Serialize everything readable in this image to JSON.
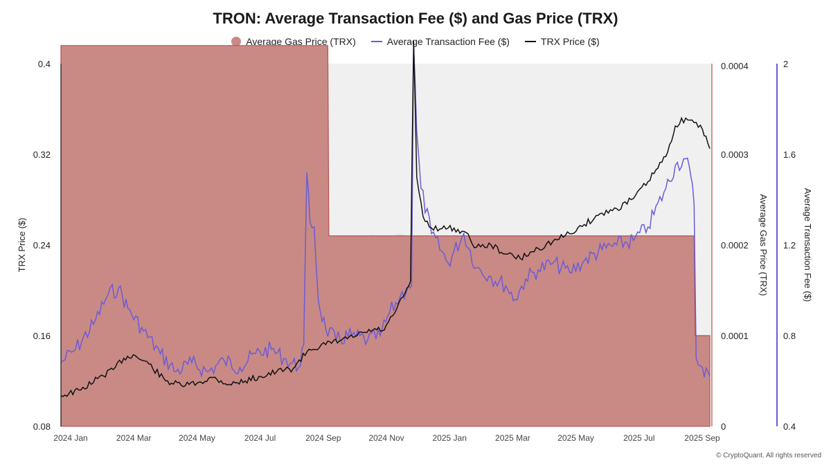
{
  "chart_data": {
    "type": "area",
    "title": "TRON: Average Transaction Fee ($) and Gas Price (TRX)",
    "legend_placement": "top-center",
    "watermark": "CryptoQuant",
    "copyright": "© CryptoQuant. All rights reserved",
    "x_ticks": [
      "2024 Jan",
      "2024 Mar",
      "2024 May",
      "2024 Jul",
      "2024 Sep",
      "2024 Nov",
      "2025 Jan",
      "2025 Mar",
      "2025 May",
      "2025 Jul",
      "2025 Sep"
    ],
    "colors": {
      "gas": "#c98a86",
      "gas_stroke": "#b5524c",
      "fee": "#6b5bd6",
      "price": "#111111",
      "plot_bg": "#f0f0f0"
    },
    "axes": {
      "left": {
        "label": "TRX Price ($)",
        "range": [
          0.08,
          0.4
        ],
        "ticks": [
          "0.08",
          "0.16",
          "0.24",
          "0.32",
          "0.4"
        ]
      },
      "right_gas": {
        "label": "Average Gas Price (TRX)",
        "range": [
          0,
          0.0004
        ],
        "ticks": [
          "0",
          "0.0001",
          "0.0002",
          "0.0003",
          "0.0004"
        ]
      },
      "right_fee": {
        "label": "Average Transaction Fee ($)",
        "range": [
          0.4,
          2.0
        ],
        "ticks": [
          "0.4",
          "0.8",
          "1.2",
          "1.6",
          "2"
        ]
      }
    },
    "series": [
      {
        "name": "Average Gas Price (TRX)",
        "kind": "area-step",
        "points": [
          [
            "2024-01-01",
            0.00042
          ],
          [
            "2024-09-12",
            0.00042
          ],
          [
            "2024-09-13",
            0.00021
          ],
          [
            "2025-08-28",
            0.00021
          ],
          [
            "2025-08-29",
            0.0001
          ],
          [
            "2025-09-12",
            0.0001
          ]
        ]
      },
      {
        "name": "Average Transaction Fee ($)",
        "kind": "line",
        "points": [
          [
            "2024-01-01",
            0.68
          ],
          [
            "2024-01-15",
            0.74
          ],
          [
            "2024-02-01",
            0.85
          ],
          [
            "2024-02-15",
            0.98
          ],
          [
            "2024-02-25",
            1.01
          ],
          [
            "2024-03-05",
            0.92
          ],
          [
            "2024-03-20",
            0.82
          ],
          [
            "2024-04-05",
            0.72
          ],
          [
            "2024-04-20",
            0.64
          ],
          [
            "2024-05-05",
            0.68
          ],
          [
            "2024-05-20",
            0.64
          ],
          [
            "2024-06-05",
            0.69
          ],
          [
            "2024-06-20",
            0.66
          ],
          [
            "2024-07-05",
            0.72
          ],
          [
            "2024-07-20",
            0.74
          ],
          [
            "2024-08-01",
            0.7
          ],
          [
            "2024-08-15",
            0.66
          ],
          [
            "2024-08-20",
            0.76
          ],
          [
            "2024-08-23",
            1.52
          ],
          [
            "2024-08-26",
            1.3
          ],
          [
            "2024-08-30",
            1.28
          ],
          [
            "2024-09-03",
            0.95
          ],
          [
            "2024-09-10",
            0.83
          ],
          [
            "2024-09-20",
            0.78
          ],
          [
            "2024-10-05",
            0.8
          ],
          [
            "2024-10-20",
            0.78
          ],
          [
            "2024-11-01",
            0.8
          ],
          [
            "2024-11-10",
            0.9
          ],
          [
            "2024-11-20",
            0.97
          ],
          [
            "2024-11-28",
            1.02
          ],
          [
            "2024-12-01",
            1.02
          ],
          [
            "2024-12-03",
            2.08
          ],
          [
            "2024-12-06",
            1.7
          ],
          [
            "2024-12-10",
            1.45
          ],
          [
            "2024-12-20",
            1.25
          ],
          [
            "2025-01-05",
            1.12
          ],
          [
            "2025-01-20",
            1.25
          ],
          [
            "2025-02-01",
            1.1
          ],
          [
            "2025-02-15",
            1.06
          ],
          [
            "2025-03-01",
            1.02
          ],
          [
            "2025-03-10",
            0.96
          ],
          [
            "2025-03-20",
            1.05
          ],
          [
            "2025-04-01",
            1.09
          ],
          [
            "2025-04-15",
            1.12
          ],
          [
            "2025-05-01",
            1.08
          ],
          [
            "2025-05-15",
            1.13
          ],
          [
            "2025-06-01",
            1.18
          ],
          [
            "2025-06-15",
            1.2
          ],
          [
            "2025-07-01",
            1.22
          ],
          [
            "2025-07-15",
            1.28
          ],
          [
            "2025-08-01",
            1.45
          ],
          [
            "2025-08-10",
            1.55
          ],
          [
            "2025-08-20",
            1.58
          ],
          [
            "2025-08-25",
            1.5
          ],
          [
            "2025-08-28",
            1.38
          ],
          [
            "2025-08-30",
            0.7
          ],
          [
            "2025-09-05",
            0.66
          ],
          [
            "2025-09-12",
            0.62
          ]
        ]
      },
      {
        "name": "TRX Price ($)",
        "kind": "line",
        "points": [
          [
            "2024-01-01",
            0.107
          ],
          [
            "2024-01-20",
            0.112
          ],
          [
            "2024-02-05",
            0.122
          ],
          [
            "2024-02-20",
            0.13
          ],
          [
            "2024-03-01",
            0.14
          ],
          [
            "2024-03-10",
            0.143
          ],
          [
            "2024-03-25",
            0.135
          ],
          [
            "2024-04-10",
            0.12
          ],
          [
            "2024-04-25",
            0.116
          ],
          [
            "2024-05-10",
            0.118
          ],
          [
            "2024-05-25",
            0.123
          ],
          [
            "2024-06-10",
            0.117
          ],
          [
            "2024-06-25",
            0.12
          ],
          [
            "2024-07-10",
            0.124
          ],
          [
            "2024-07-25",
            0.128
          ],
          [
            "2024-08-10",
            0.131
          ],
          [
            "2024-08-25",
            0.148
          ],
          [
            "2024-09-10",
            0.152
          ],
          [
            "2024-09-25",
            0.156
          ],
          [
            "2024-10-10",
            0.16
          ],
          [
            "2024-10-25",
            0.165
          ],
          [
            "2024-11-05",
            0.165
          ],
          [
            "2024-11-15",
            0.18
          ],
          [
            "2024-11-25",
            0.198
          ],
          [
            "2024-11-30",
            0.208
          ],
          [
            "2024-12-03",
            0.42
          ],
          [
            "2024-12-06",
            0.3
          ],
          [
            "2024-12-12",
            0.265
          ],
          [
            "2024-12-20",
            0.255
          ],
          [
            "2025-01-05",
            0.255
          ],
          [
            "2025-01-20",
            0.252
          ],
          [
            "2025-02-01",
            0.238
          ],
          [
            "2025-02-15",
            0.24
          ],
          [
            "2025-03-01",
            0.232
          ],
          [
            "2025-03-15",
            0.228
          ],
          [
            "2025-04-01",
            0.237
          ],
          [
            "2025-04-15",
            0.243
          ],
          [
            "2025-05-01",
            0.25
          ],
          [
            "2025-05-15",
            0.258
          ],
          [
            "2025-06-01",
            0.268
          ],
          [
            "2025-06-15",
            0.272
          ],
          [
            "2025-07-01",
            0.281
          ],
          [
            "2025-07-15",
            0.296
          ],
          [
            "2025-08-01",
            0.318
          ],
          [
            "2025-08-10",
            0.345
          ],
          [
            "2025-08-20",
            0.352
          ],
          [
            "2025-08-28",
            0.348
          ],
          [
            "2025-09-05",
            0.342
          ],
          [
            "2025-09-10",
            0.33
          ],
          [
            "2025-09-12",
            0.325
          ]
        ]
      }
    ]
  }
}
